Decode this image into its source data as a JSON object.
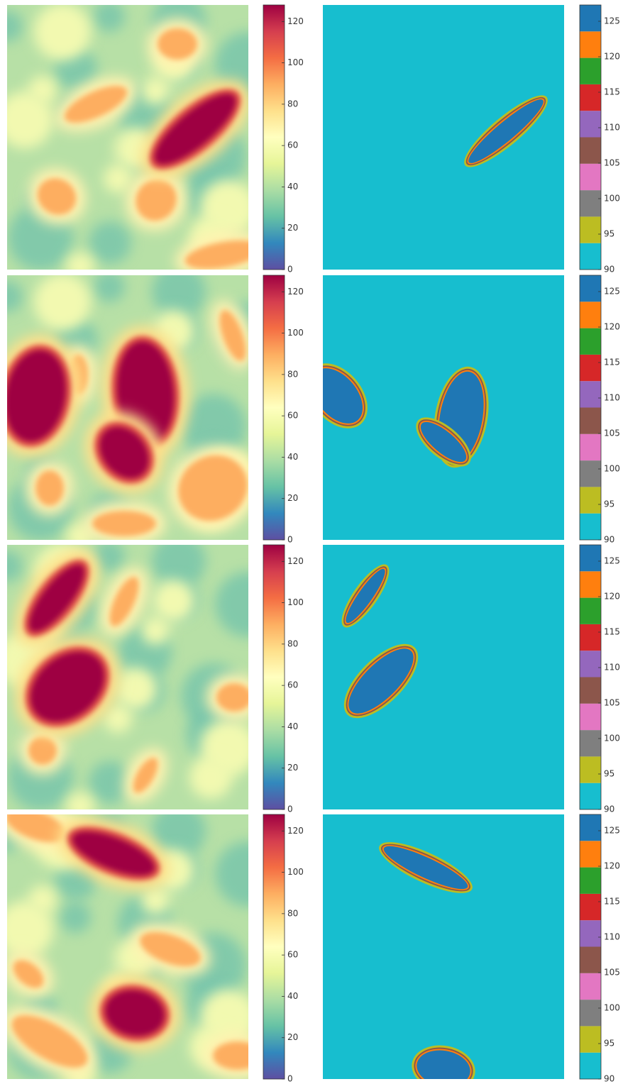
{
  "chart_data": [
    {
      "type": "heatmap",
      "ylim": [
        0,
        128
      ],
      "yticks": [
        0,
        20,
        40,
        60,
        80,
        100,
        120
      ]
    },
    {
      "type": "categorical",
      "ylim": [
        90,
        127.3
      ],
      "yticks": [
        90,
        95,
        100,
        105,
        110,
        115,
        120,
        125
      ],
      "colors": [
        "#17becf",
        "#bcbd22",
        "#7f7f7f",
        "#e377c2",
        "#8c564b",
        "#9467bd",
        "#d62728",
        "#2ca02c",
        "#ff7f0e",
        "#1f77b4"
      ]
    },
    {
      "type": "heatmap",
      "ylim": [
        0,
        128
      ],
      "yticks": [
        0,
        20,
        40,
        60,
        80,
        100,
        120
      ]
    },
    {
      "type": "categorical",
      "ylim": [
        90,
        127.3
      ],
      "yticks": [
        90,
        95,
        100,
        105,
        110,
        115,
        120,
        125
      ],
      "colors": [
        "#17becf",
        "#bcbd22",
        "#7f7f7f",
        "#e377c2",
        "#8c564b",
        "#9467bd",
        "#d62728",
        "#2ca02c",
        "#ff7f0e",
        "#1f77b4"
      ]
    },
    {
      "type": "heatmap",
      "ylim": [
        0,
        128
      ],
      "yticks": [
        0,
        20,
        40,
        60,
        80,
        100,
        120
      ]
    },
    {
      "type": "categorical",
      "ylim": [
        90,
        127.3
      ],
      "yticks": [
        90,
        95,
        100,
        105,
        110,
        115,
        120,
        125
      ],
      "colors": [
        "#17becf",
        "#bcbd22",
        "#7f7f7f",
        "#e377c2",
        "#8c564b",
        "#9467bd",
        "#d62728",
        "#2ca02c",
        "#ff7f0e",
        "#1f77b4"
      ]
    },
    {
      "type": "heatmap",
      "ylim": [
        0,
        128
      ],
      "yticks": [
        0,
        20,
        40,
        60,
        80,
        100,
        120
      ]
    },
    {
      "type": "categorical",
      "ylim": [
        90,
        127.3
      ],
      "yticks": [
        90,
        95,
        100,
        105,
        110,
        115,
        120,
        125
      ],
      "colors": [
        "#17becf",
        "#bcbd22",
        "#7f7f7f",
        "#e377c2",
        "#8c564b",
        "#9467bd",
        "#d62728",
        "#2ca02c",
        "#ff7f0e",
        "#1f77b4"
      ]
    }
  ]
}
